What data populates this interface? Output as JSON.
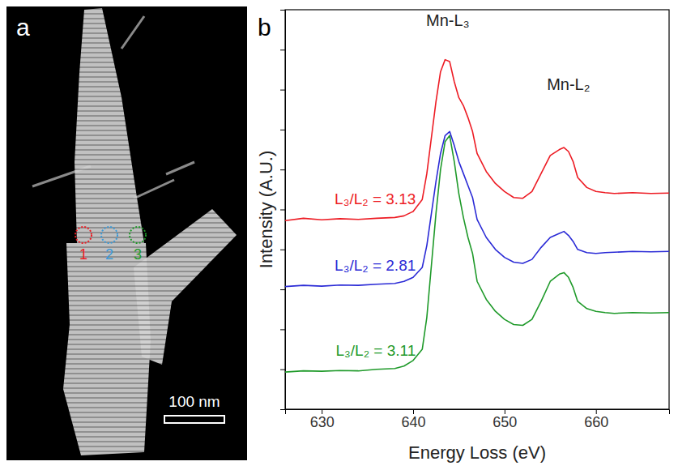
{
  "image_panel": {
    "label": "a",
    "scale_bar": "100 nm",
    "markers": [
      {
        "label": "1",
        "color": "#ed1c24"
      },
      {
        "label": "2",
        "color": "#3a9ad9"
      },
      {
        "label": "3",
        "color": "#1f9a2a"
      }
    ]
  },
  "chart_data": {
    "type": "line",
    "panel_label": "b",
    "x_label": "Energy Loss (eV)",
    "y_label": "Intensity (A.U.)",
    "annotations": [
      {
        "text": "Mn-L₃",
        "x": 643.8,
        "y": 9.6
      },
      {
        "text": "Mn-L₂",
        "x": 657,
        "y": 8.0
      }
    ],
    "x": [
      626,
      628,
      630,
      632,
      634,
      636,
      638,
      639,
      640,
      641,
      641.5,
      642,
      642.5,
      643,
      643.5,
      644,
      644.5,
      645,
      645.5,
      646,
      646.5,
      647,
      648,
      649,
      650,
      651,
      652,
      653,
      654,
      655,
      656,
      656.5,
      657,
      657.5,
      658,
      659,
      660,
      661,
      662,
      664,
      666,
      668
    ],
    "series": [
      {
        "name": "L₃/L₂ = 3.13",
        "color": "#ed1c24",
        "values": [
          4.72,
          4.78,
          4.74,
          4.77,
          4.75,
          4.78,
          4.8,
          4.84,
          4.95,
          5.25,
          5.9,
          6.8,
          7.7,
          8.45,
          8.75,
          8.7,
          8.2,
          7.8,
          7.6,
          7.3,
          6.95,
          6.4,
          5.95,
          5.65,
          5.45,
          5.3,
          5.28,
          5.45,
          5.9,
          6.35,
          6.5,
          6.55,
          6.45,
          6.2,
          5.8,
          5.55,
          5.45,
          5.42,
          5.4,
          5.42,
          5.4,
          5.41
        ]
      },
      {
        "name": "L₃/L₂ = 2.81",
        "color": "#2b2bd6",
        "values": [
          3.07,
          3.1,
          3.08,
          3.11,
          3.1,
          3.13,
          3.15,
          3.2,
          3.3,
          3.55,
          4.1,
          4.9,
          5.7,
          6.4,
          6.85,
          6.95,
          6.6,
          6.2,
          5.9,
          5.6,
          5.3,
          4.75,
          4.3,
          4.0,
          3.8,
          3.68,
          3.65,
          3.75,
          4.05,
          4.3,
          4.4,
          4.45,
          4.35,
          4.2,
          4.0,
          3.92,
          3.9,
          3.92,
          3.93,
          3.95,
          3.94,
          3.95
        ]
      },
      {
        "name": "L₃/L₂ = 3.11",
        "color": "#1f9a2a",
        "values": [
          0.93,
          0.96,
          0.95,
          0.97,
          0.96,
          1.0,
          1.02,
          1.08,
          1.22,
          1.5,
          2.3,
          3.6,
          4.9,
          6.0,
          6.7,
          6.85,
          6.2,
          5.4,
          4.8,
          4.3,
          3.9,
          3.2,
          2.75,
          2.45,
          2.25,
          2.12,
          2.1,
          2.25,
          2.7,
          3.2,
          3.38,
          3.42,
          3.3,
          3.05,
          2.7,
          2.52,
          2.45,
          2.42,
          2.4,
          2.42,
          2.41,
          2.42
        ]
      }
    ],
    "xlim": [
      626,
      668
    ],
    "xticks": [
      630,
      640,
      650,
      660
    ],
    "ylim": [
      0,
      10
    ],
    "yticks": [
      1,
      2,
      3,
      4,
      5,
      6,
      7,
      8,
      9
    ],
    "tick_labels": "x"
  }
}
